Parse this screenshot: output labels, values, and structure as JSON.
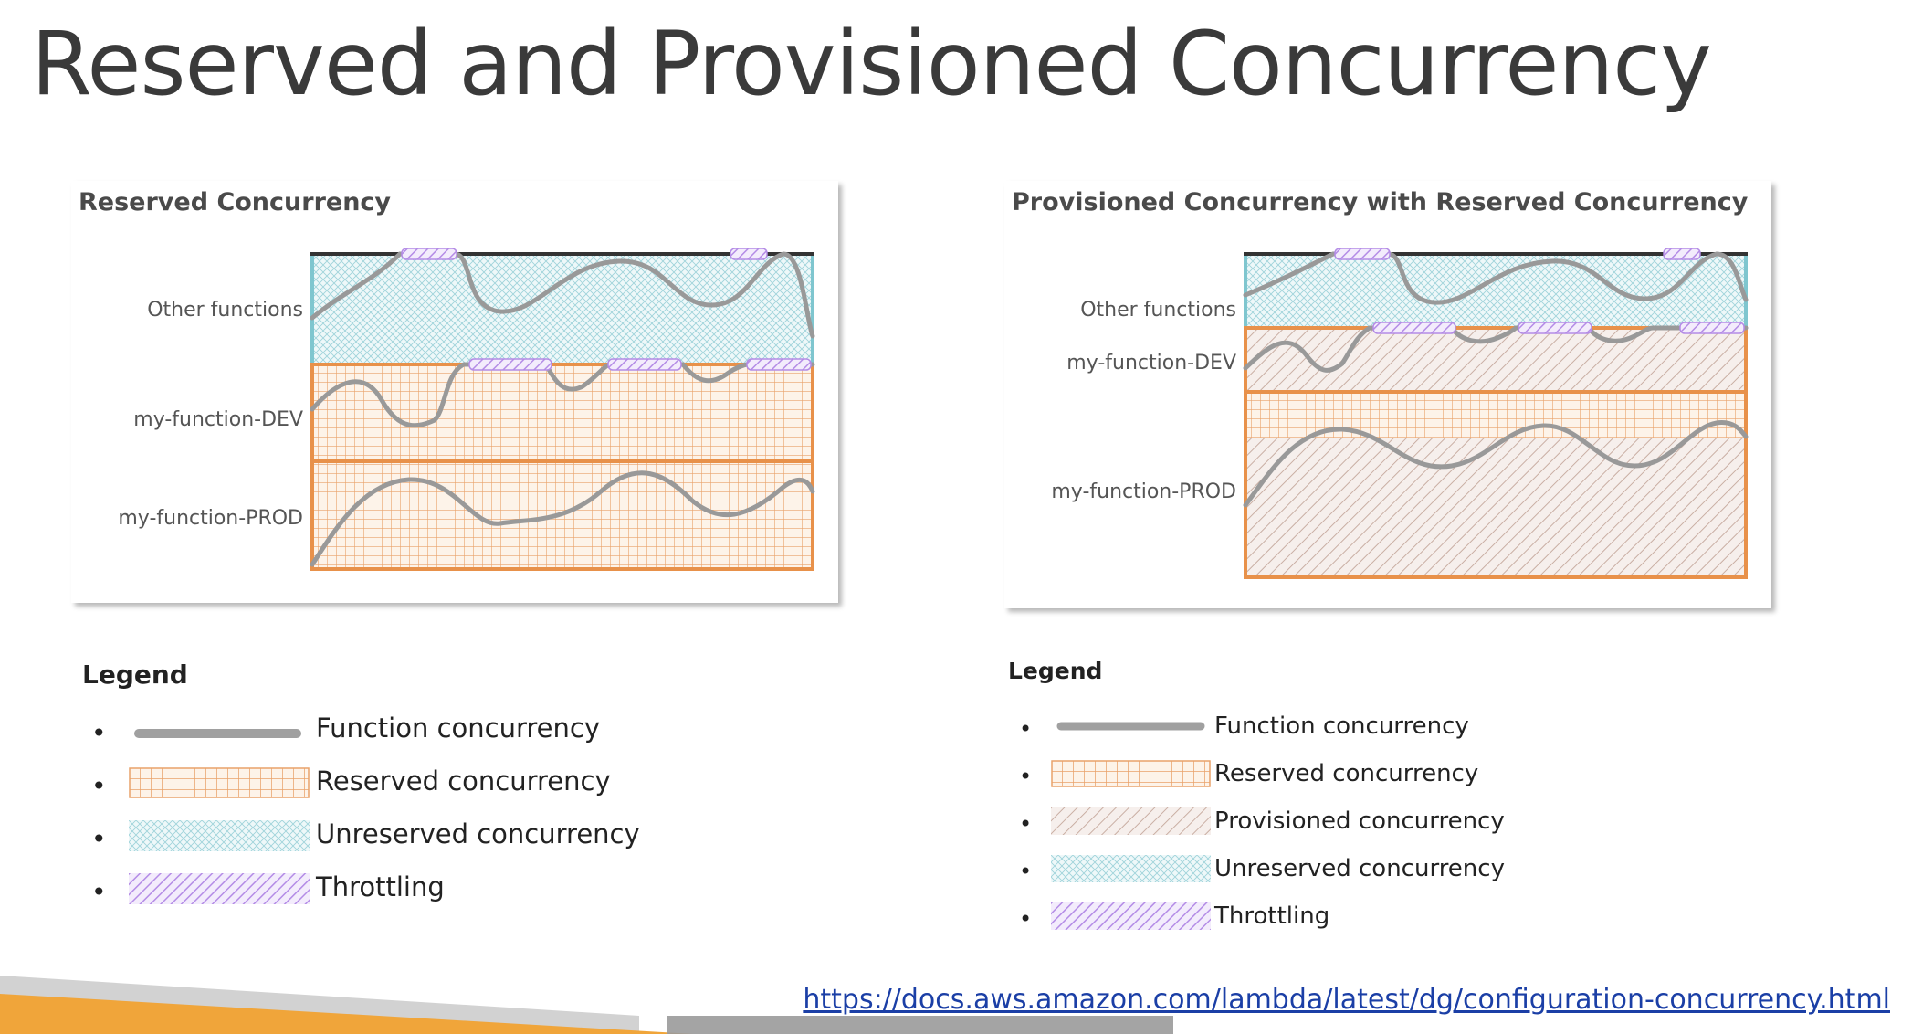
{
  "title": "Reserved and Provisioned Concurrency",
  "left_panel": {
    "title": "Reserved Concurrency",
    "rows": [
      "Other functions",
      "my-function-DEV",
      "my-function-PROD"
    ]
  },
  "right_panel": {
    "title": "Provisioned Concurrency with Reserved Concurrency",
    "rows": [
      "Other functions",
      "my-function-DEV",
      "my-function-PROD"
    ]
  },
  "left_legend": {
    "title": "Legend",
    "items": [
      {
        "label": "Function concurrency",
        "swatch": "function"
      },
      {
        "label": "Reserved concurrency",
        "swatch": "reserved"
      },
      {
        "label": "Unreserved concurrency",
        "swatch": "unreserved"
      },
      {
        "label": "Throttling",
        "swatch": "throttling"
      }
    ]
  },
  "right_legend": {
    "title": "Legend",
    "items": [
      {
        "label": "Function concurrency",
        "swatch": "function"
      },
      {
        "label": "Reserved concurrency",
        "swatch": "reserved"
      },
      {
        "label": "Provisioned concurrency",
        "swatch": "provisioned"
      },
      {
        "label": "Unreserved concurrency",
        "swatch": "unreserved"
      },
      {
        "label": "Throttling",
        "swatch": "throttling"
      }
    ]
  },
  "link": "https://docs.aws.amazon.com/lambda/latest/dg/configuration-concurrency.html",
  "colors": {
    "reserved": "#e8914a",
    "unreserved": "#7fc6cf",
    "provisioned": "#c8a89a",
    "throttling": "#b893e8",
    "function": "#999999",
    "footer_orange": "#f0a53a",
    "footer_gray": "#cfcfcf"
  }
}
